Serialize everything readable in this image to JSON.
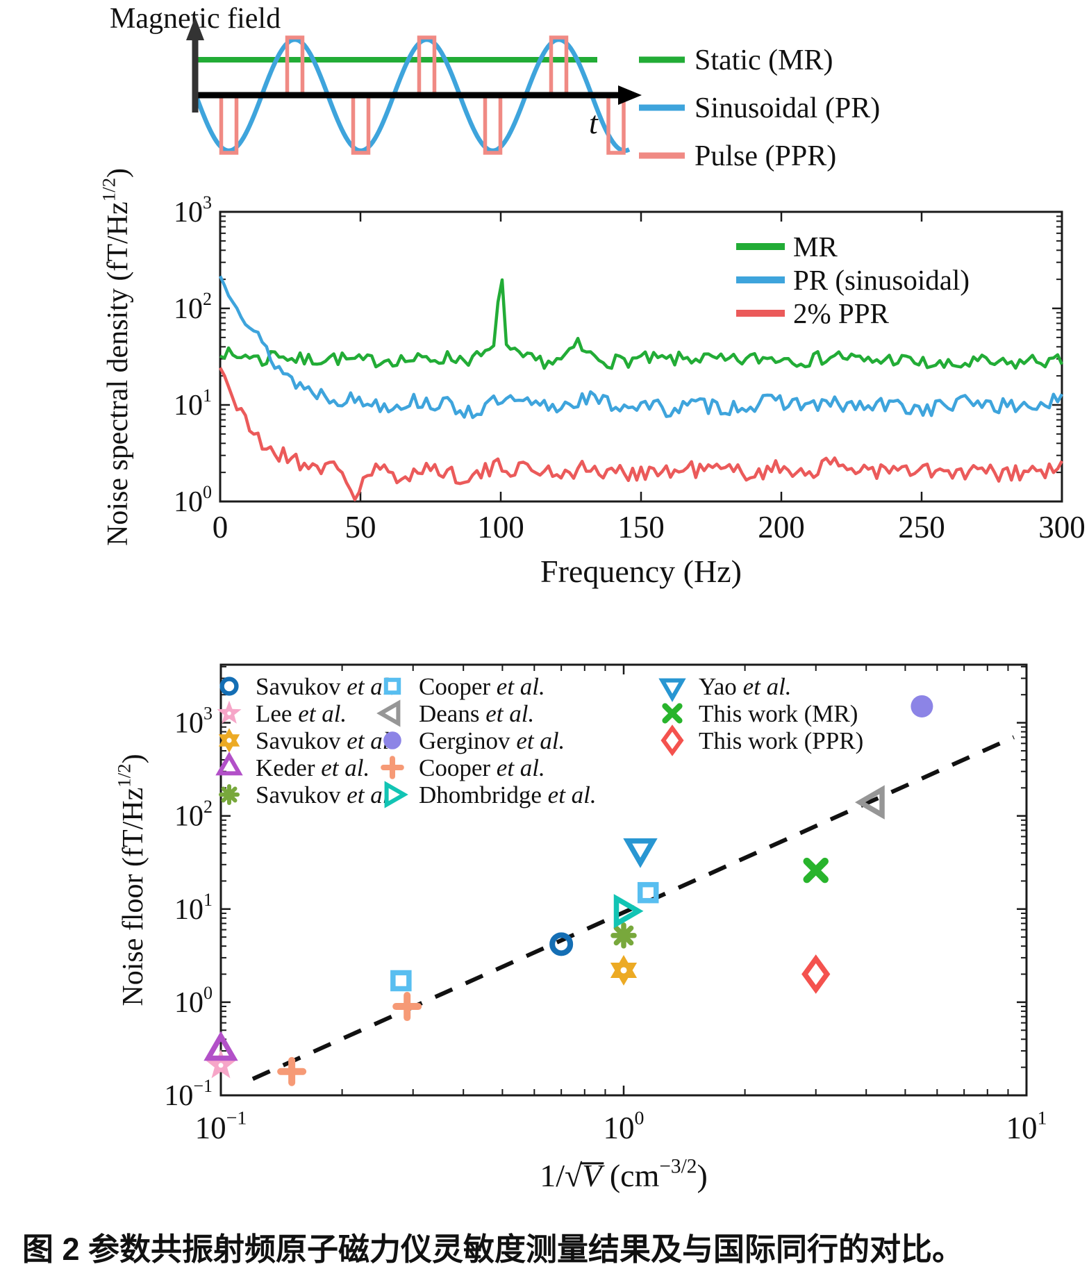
{
  "caption": "图 2 参数共振射频原子磁力仪灵敏度测量结果及与国际同行的对比。",
  "schematic": {
    "ylabel": "Magnetic field",
    "xlabel": "t",
    "legend": [
      {
        "label": "Static (MR)",
        "color": "#22ac36"
      },
      {
        "label": "Sinusoidal (PR)",
        "color": "#3ea4dc"
      },
      {
        "label": "Pulse (PPR)",
        "color": "#f08a84"
      }
    ]
  },
  "chart_data": [
    {
      "type": "line",
      "title": "",
      "xlabel": "Frequency (Hz)",
      "ylabel": "Noise spectral density (fT/Hz^1/2)",
      "ylabel_parts": [
        {
          "t": "Noise spectral density (fT/Hz"
        },
        {
          "t": "1/2",
          "sup": true
        },
        {
          "t": ")"
        }
      ],
      "xlim": [
        0,
        300
      ],
      "ylim": [
        1,
        1000
      ],
      "x_ticks": [
        0,
        50,
        100,
        150,
        200,
        250,
        300
      ],
      "y_ticks_exp": [
        0,
        1,
        2,
        3
      ],
      "grid": false,
      "legend_position": "upper right",
      "series": [
        {
          "name": "MR",
          "color": "#22ac36",
          "x": [
            0,
            5,
            10,
            15,
            20,
            25,
            30,
            40,
            50,
            60,
            70,
            80,
            90,
            95,
            98,
            100,
            102,
            105,
            110,
            120,
            125,
            127,
            130,
            140,
            150,
            160,
            170,
            180,
            190,
            200,
            210,
            220,
            230,
            240,
            250,
            260,
            270,
            280,
            290,
            300
          ],
          "y": [
            38,
            30,
            34,
            28,
            36,
            30,
            29,
            31,
            28,
            30,
            29,
            31,
            30,
            33,
            42,
            330,
            42,
            33,
            29,
            28,
            33,
            46,
            34,
            28,
            30,
            29,
            31,
            28,
            30,
            31,
            29,
            33,
            28,
            30,
            27,
            25,
            28,
            26,
            29,
            28
          ]
        },
        {
          "name": "PR (sinusoidal)",
          "color": "#3ea4dc",
          "x": [
            0,
            3,
            6,
            10,
            15,
            20,
            25,
            30,
            40,
            50,
            60,
            70,
            80,
            90,
            100,
            110,
            120,
            130,
            140,
            150,
            160,
            170,
            180,
            190,
            200,
            210,
            220,
            230,
            240,
            250,
            260,
            270,
            280,
            290,
            300
          ],
          "y": [
            210,
            160,
            120,
            70,
            42,
            26,
            19,
            15,
            12,
            11,
            10,
            11,
            10,
            8.5,
            11,
            10,
            9.5,
            12,
            10,
            10,
            9,
            10,
            9.5,
            10,
            11,
            10,
            10,
            9.5,
            10,
            9,
            10,
            11,
            9.5,
            10,
            11
          ]
        },
        {
          "name": "2% PPR",
          "color": "#eb5a5a",
          "x": [
            0,
            3,
            6,
            10,
            15,
            20,
            25,
            30,
            40,
            45,
            48,
            52,
            60,
            63,
            70,
            80,
            90,
            100,
            110,
            120,
            130,
            140,
            150,
            160,
            170,
            180,
            190,
            200,
            210,
            220,
            230,
            240,
            250,
            260,
            270,
            280,
            290,
            300
          ],
          "y": [
            25,
            17,
            9,
            6,
            4,
            3.2,
            2.8,
            2.5,
            2.2,
            1.8,
            1.1,
            1.9,
            2.2,
            1.3,
            2.4,
            2.0,
            1.8,
            2.3,
            2.2,
            2.0,
            2.2,
            1.9,
            2.1,
            2.0,
            2.2,
            2.1,
            2.0,
            2.2,
            2.1,
            2.4,
            2.2,
            2.0,
            2.1,
            1.9,
            2.0,
            1.9,
            2.0,
            2.2
          ]
        }
      ]
    },
    {
      "type": "scatter",
      "title": "",
      "xlabel": "1/sqrt(V) (cm^-3/2)",
      "xlabel_parts": [
        {
          "t": "1/"
        },
        {
          "t": "√"
        },
        {
          "t": "V",
          "var": true,
          "overline": true
        },
        {
          "t": " (cm"
        },
        {
          "t": "-3/2",
          "sup": true
        },
        {
          "t": ")"
        }
      ],
      "ylabel": "Noise floor (fT/Hz^1/2)",
      "ylabel_parts": [
        {
          "t": "Noise floor (fT/Hz"
        },
        {
          "t": "1/2",
          "sup": true
        },
        {
          "t": ")"
        }
      ],
      "xlim": [
        0.1,
        10
      ],
      "ylim": [
        0.1,
        4200
      ],
      "x_ticks_exp": [
        -1,
        0,
        1
      ],
      "y_ticks_exp": [
        -1,
        0,
        1,
        2,
        3
      ],
      "grid": false,
      "trend_line": {
        "style": "dashed",
        "color": "#111111",
        "points": [
          [
            0.12,
            0.15
          ],
          [
            9.3,
            700
          ]
        ]
      },
      "points": [
        {
          "label": "Savukov et al.",
          "marker": "circle-open",
          "color": "#146eb4",
          "data": [
            [
              0.7,
              4.2
            ]
          ]
        },
        {
          "label": "Lee et al.",
          "marker": "star-filled",
          "color": "#f6a6c8",
          "data": [
            [
              0.1,
              0.21
            ]
          ]
        },
        {
          "label": "Savukov et al.",
          "marker": "hexagram-filled",
          "color": "#ecaa24",
          "data": [
            [
              1.0,
              2.2
            ]
          ]
        },
        {
          "label": "Keder et al.",
          "marker": "triangle-up-open",
          "color": "#b250c8",
          "data": [
            [
              0.1,
              0.3
            ]
          ]
        },
        {
          "label": "Savukov et al.",
          "marker": "asterisk",
          "color": "#78a83c",
          "data": [
            [
              1.0,
              5.2
            ]
          ]
        },
        {
          "label": "Cooper et al.",
          "marker": "square-open",
          "color": "#58bef0",
          "data": [
            [
              0.28,
              1.7
            ],
            [
              1.15,
              15
            ]
          ]
        },
        {
          "label": "Deans et al.",
          "marker": "triangle-left-open",
          "color": "#969696",
          "data": [
            [
              4.2,
              140
            ]
          ]
        },
        {
          "label": "Gerginov et al.",
          "marker": "circle-filled",
          "color": "#8c84e6",
          "data": [
            [
              5.5,
              1500
            ]
          ]
        },
        {
          "label": "Cooper et al.",
          "marker": "plus",
          "color": "#f69a76",
          "data": [
            [
              0.15,
              0.18
            ],
            [
              0.29,
              0.9
            ]
          ]
        },
        {
          "label": "Dhombridge et al.",
          "marker": "triangle-right-open",
          "color": "#12c4b4",
          "data": [
            [
              1.0,
              9.5
            ]
          ]
        },
        {
          "label": "Yao et al.",
          "marker": "triangle-down-open",
          "color": "#2896d2",
          "data": [
            [
              1.1,
              45
            ]
          ]
        },
        {
          "label": "This work (MR)",
          "marker": "x",
          "color": "#28b42c",
          "data": [
            [
              3.0,
              26
            ]
          ]
        },
        {
          "label": "This work (PPR)",
          "marker": "diamond-open",
          "color": "#f4524e",
          "data": [
            [
              3.0,
              2.0
            ]
          ]
        }
      ],
      "legend_columns": [
        [
          0,
          1,
          2,
          3,
          4
        ],
        [
          5,
          6,
          7,
          8,
          9
        ],
        [
          10,
          11,
          12
        ]
      ]
    }
  ]
}
